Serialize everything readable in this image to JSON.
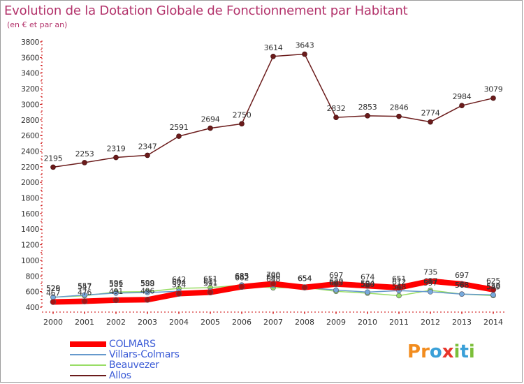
{
  "title": "Evolution de la Dotation Globale de Fonctionnement par Habitant",
  "subtitle": "(en € et par an)",
  "logo": {
    "text": "Proxiti",
    "letters": [
      "P",
      "r",
      "o",
      "x",
      "i",
      "t",
      "i"
    ],
    "colors": [
      "#f28c1e",
      "#f28c1e",
      "#3aa0d8",
      "#e8352b",
      "#7cbf3a",
      "#3aa0d8",
      "#7cbf3a"
    ]
  },
  "chart_data": {
    "type": "line",
    "title": "Evolution de la Dotation Globale de Fonctionnement par Habitant",
    "subtitle": "(en € et par an)",
    "x": [
      "2000",
      "2001",
      "2002",
      "2003",
      "2004",
      "2005",
      "2006",
      "2007",
      "2008",
      "2009",
      "2010",
      "2011",
      "2012",
      "2013",
      "2014"
    ],
    "ylim": [
      400,
      3800
    ],
    "yticks": [
      400,
      600,
      800,
      1000,
      1200,
      1400,
      1600,
      1800,
      2000,
      2200,
      2400,
      2600,
      2800,
      3000,
      3200,
      3400,
      3600,
      3800
    ],
    "grid": false,
    "legend_position": "bottom-left",
    "series": [
      {
        "name": "COLMARS",
        "color": "#ff0000",
        "width": 8,
        "values": [
          467,
          476,
          491,
          496,
          574,
          591,
          662,
          700,
          654,
          697,
          674,
          651,
          735,
          697,
          625
        ],
        "labels": [
          "467",
          "476",
          "491",
          "496",
          "574",
          "591",
          "662",
          "700",
          "654",
          "697",
          "674",
          "651",
          "735",
          "697",
          "625"
        ]
      },
      {
        "name": "Villars-Colmars",
        "color": "#6699cc",
        "width": 1.5,
        "values": [
          526,
          557,
          581,
          588,
          604,
          611,
          685,
          680,
          654,
          620,
          594,
          612,
          597,
          568,
          558
        ],
        "labels": [
          "526",
          "557",
          "581",
          "588",
          "604",
          "611",
          "685",
          "680",
          "654",
          "620",
          "594",
          "612",
          "597",
          "568",
          "558"
        ]
      },
      {
        "name": "Beauvezer",
        "color": "#99dd66",
        "width": 1.5,
        "values": [
          529,
          547,
          596,
          599,
          642,
          651,
          683,
          648,
          654,
          603,
          580,
          548,
          617,
          568,
          549
        ],
        "labels": [
          "529",
          "547",
          "596",
          "599",
          "642",
          "651",
          "683",
          "648",
          "654",
          "603",
          "580",
          "548",
          "617",
          "568",
          "549"
        ]
      },
      {
        "name": "Allos",
        "color": "#6b1b1b",
        "width": 1.5,
        "values": [
          2195,
          2253,
          2319,
          2347,
          2591,
          2694,
          2750,
          3614,
          3643,
          2832,
          2853,
          2846,
          2774,
          2984,
          3079
        ],
        "labels": [
          "2195",
          "2253",
          "2319",
          "2347",
          "2591",
          "2694",
          "2750",
          "3614",
          "3643",
          "2832",
          "2853",
          "2846",
          "2774",
          "2984",
          "3079"
        ]
      }
    ]
  }
}
